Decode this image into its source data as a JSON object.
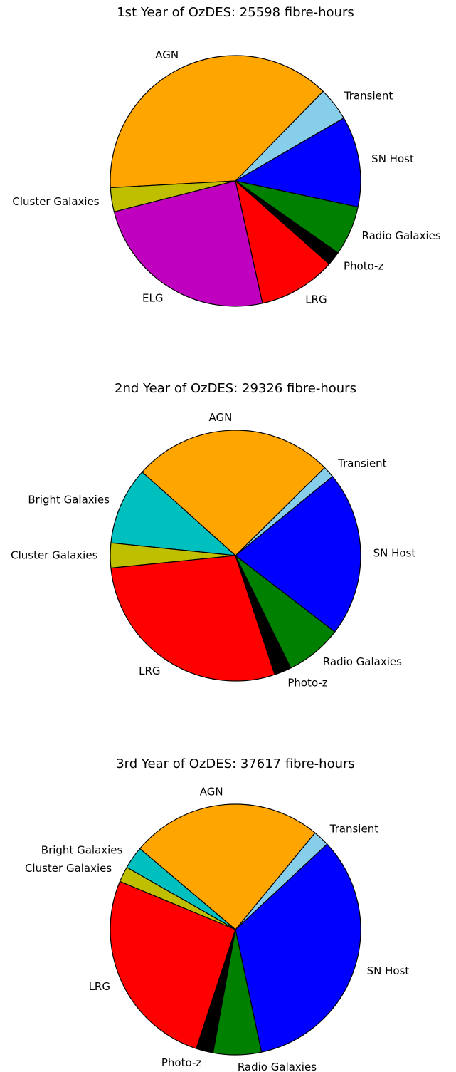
{
  "chart_data": [
    {
      "type": "pie",
      "title": "1st Year of OzDES: 25598 fibre-hours",
      "startangle": -12,
      "categories": [
        "SN Host",
        "Transient",
        "AGN",
        "Cluster Galaxies",
        "ELG",
        "LRG",
        "Photo-z",
        "Radio Galaxies"
      ],
      "values": [
        11.7,
        4.3,
        38.2,
        3.1,
        24.5,
        10.0,
        1.8,
        6.4
      ],
      "colors": [
        "#0000ff",
        "#87ceeb",
        "#ffa500",
        "#bfbf00",
        "#bf00bf",
        "#ff0000",
        "#000000",
        "#008000"
      ]
    },
    {
      "type": "pie",
      "title": "2nd Year of OzDES: 29326 fibre-hours",
      "startangle": -37.5,
      "categories": [
        "SN Host",
        "Transient",
        "AGN",
        "Bright Galaxies",
        "Cluster Galaxies",
        "LRG",
        "Photo-z",
        "Radio Galaxies"
      ],
      "values": [
        21.3,
        1.5,
        26.0,
        10.0,
        3.2,
        28.5,
        2.2,
        7.3
      ],
      "colors": [
        "#0000ff",
        "#87ceeb",
        "#ffa500",
        "#00bfbf",
        "#bfbf00",
        "#ff0000",
        "#000000",
        "#008000"
      ]
    },
    {
      "type": "pie",
      "title": "3rd Year of OzDES: 37617 fibre-hours",
      "startangle": -78,
      "categories": [
        "SN Host",
        "Transient",
        "AGN",
        "Bright Galaxies",
        "Cluster Galaxies",
        "LRG",
        "Photo-z",
        "Radio Galaxies"
      ],
      "values": [
        33.6,
        2.1,
        24.8,
        2.9,
        2.0,
        26.2,
        2.2,
        6.2
      ],
      "colors": [
        "#0000ff",
        "#87ceeb",
        "#ffa500",
        "#00bfbf",
        "#bfbf00",
        "#ff0000",
        "#000000",
        "#008000"
      ]
    }
  ]
}
